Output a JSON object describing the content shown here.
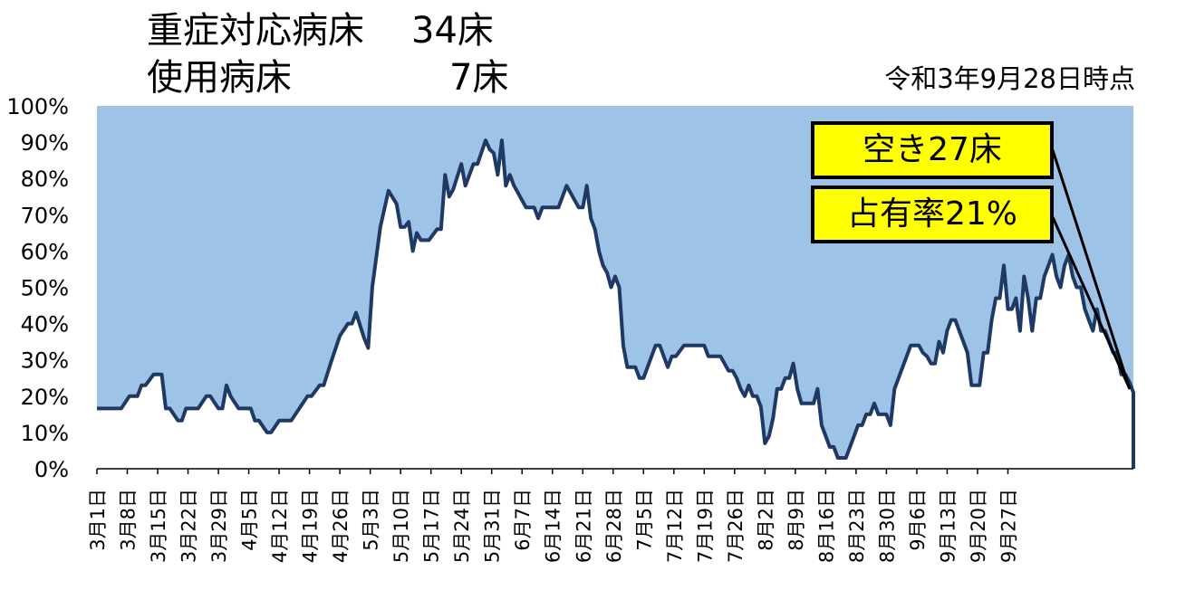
{
  "header": {
    "row1_label": "重症対応病床",
    "row1_value": "34床",
    "row2_label": "使用病床",
    "row2_value": "7床",
    "as_of": "令和3年9月28日時点"
  },
  "callouts": {
    "vacant": "空き27床",
    "occupancy": "占有率21%"
  },
  "colors": {
    "plot_background": "#9dc3e6",
    "line": "#1f3864",
    "callout_fill": "#ffff00"
  },
  "chart_data": {
    "type": "area",
    "title": "",
    "xlabel": "",
    "ylabel": "",
    "ylim": [
      0,
      100
    ],
    "y_ticks": [
      "0%",
      "10%",
      "20%",
      "30%",
      "40%",
      "50%",
      "60%",
      "70%",
      "80%",
      "90%",
      "100%"
    ],
    "x_tick_labels": [
      "3月1日",
      "3月8日",
      "3月15日",
      "3月22日",
      "3月29日",
      "4月5日",
      "4月12日",
      "4月19日",
      "4月26日",
      "5月3日",
      "5月10日",
      "5月17日",
      "5月24日",
      "5月31日",
      "6月7日",
      "6月14日",
      "6月21日",
      "6月28日",
      "7月5日",
      "7月12日",
      "7月19日",
      "7月26日",
      "8月2日",
      "8月9日",
      "8月16日",
      "8月23日",
      "8月30日",
      "9月6日",
      "9月13日",
      "9月20日",
      "9月27日"
    ],
    "series": [
      {
        "name": "占有率",
        "points": [
          [
            0,
            16.6
          ],
          [
            6,
            16.6
          ],
          [
            8,
            20
          ],
          [
            10,
            20
          ],
          [
            11,
            23
          ],
          [
            12,
            23
          ],
          [
            14,
            26
          ],
          [
            16,
            26
          ],
          [
            17,
            16.6
          ],
          [
            18,
            16.6
          ],
          [
            20,
            13.3
          ],
          [
            21,
            13.3
          ],
          [
            22,
            16.6
          ],
          [
            25,
            16.6
          ],
          [
            27,
            20
          ],
          [
            28,
            20
          ],
          [
            30,
            16.6
          ],
          [
            31,
            16.6
          ],
          [
            32,
            23
          ],
          [
            33,
            20
          ],
          [
            35,
            16.6
          ],
          [
            38,
            16.6
          ],
          [
            39,
            13.3
          ],
          [
            40,
            13.3
          ],
          [
            42,
            10
          ],
          [
            43,
            10
          ],
          [
            45,
            13.3
          ],
          [
            48,
            13.3
          ],
          [
            52,
            20
          ],
          [
            53,
            20
          ],
          [
            55,
            23
          ],
          [
            56,
            23
          ],
          [
            58,
            30
          ],
          [
            60,
            36.6
          ],
          [
            62,
            40
          ],
          [
            63,
            40
          ],
          [
            64,
            43
          ],
          [
            66,
            36
          ],
          [
            67,
            33.3
          ],
          [
            68,
            50
          ],
          [
            70,
            66.6
          ],
          [
            72,
            76.6
          ],
          [
            74,
            73
          ],
          [
            75,
            66.6
          ],
          [
            76,
            66.6
          ],
          [
            77,
            68
          ],
          [
            78,
            60
          ],
          [
            79,
            65
          ],
          [
            80,
            63
          ],
          [
            81,
            63
          ],
          [
            82,
            63
          ],
          [
            84,
            66
          ],
          [
            85,
            66
          ],
          [
            86,
            81
          ],
          [
            87,
            75
          ],
          [
            88,
            77
          ],
          [
            90,
            84
          ],
          [
            91,
            78
          ],
          [
            93,
            84
          ],
          [
            94,
            84
          ],
          [
            96,
            90.5
          ],
          [
            97,
            88
          ],
          [
            98,
            87
          ],
          [
            99,
            81
          ],
          [
            100,
            90.5
          ],
          [
            101,
            78
          ],
          [
            102,
            81
          ],
          [
            103,
            78
          ],
          [
            104,
            76
          ],
          [
            105,
            74
          ],
          [
            106,
            72
          ],
          [
            107,
            72
          ],
          [
            108,
            72
          ],
          [
            109,
            69
          ],
          [
            110,
            72
          ],
          [
            113,
            72
          ],
          [
            114,
            72
          ],
          [
            116,
            78
          ],
          [
            118,
            74
          ],
          [
            119,
            72
          ],
          [
            120,
            72
          ],
          [
            121,
            78
          ],
          [
            122,
            69
          ],
          [
            123,
            66
          ],
          [
            124,
            60
          ],
          [
            125,
            56
          ],
          [
            126,
            54
          ],
          [
            127,
            50
          ],
          [
            128,
            53
          ],
          [
            129,
            50
          ],
          [
            130,
            34
          ],
          [
            131,
            28
          ],
          [
            132,
            28
          ],
          [
            133,
            28
          ],
          [
            134,
            25
          ],
          [
            135,
            25
          ],
          [
            137,
            31
          ],
          [
            138,
            34
          ],
          [
            139,
            34
          ],
          [
            140,
            31
          ],
          [
            141,
            28
          ],
          [
            142,
            31
          ],
          [
            143,
            31
          ],
          [
            145,
            34
          ],
          [
            150,
            34
          ],
          [
            151,
            31
          ],
          [
            152,
            31
          ],
          [
            153,
            31
          ],
          [
            154,
            31
          ],
          [
            155,
            29
          ],
          [
            156,
            27
          ],
          [
            157,
            27
          ],
          [
            158,
            25
          ],
          [
            159,
            22
          ],
          [
            160,
            20
          ],
          [
            161,
            23
          ],
          [
            162,
            20
          ],
          [
            163,
            20
          ],
          [
            164,
            17
          ],
          [
            165,
            7
          ],
          [
            166,
            9
          ],
          [
            167,
            14
          ],
          [
            168,
            22
          ],
          [
            169,
            22
          ],
          [
            170,
            25
          ],
          [
            171,
            25
          ],
          [
            172,
            29
          ],
          [
            173,
            22
          ],
          [
            174,
            18
          ],
          [
            175,
            18
          ],
          [
            176,
            18
          ],
          [
            177,
            18
          ],
          [
            178,
            22
          ],
          [
            179,
            12
          ],
          [
            180,
            9
          ],
          [
            181,
            6
          ],
          [
            182,
            6
          ],
          [
            183,
            3
          ],
          [
            184,
            3
          ],
          [
            185,
            3
          ],
          [
            186,
            6
          ],
          [
            187,
            9
          ],
          [
            188,
            12
          ],
          [
            189,
            12
          ],
          [
            190,
            15
          ],
          [
            191,
            15
          ],
          [
            192,
            18
          ],
          [
            193,
            15
          ],
          [
            194,
            15
          ],
          [
            195,
            15
          ],
          [
            196,
            12
          ],
          [
            197,
            22
          ],
          [
            198,
            25
          ],
          [
            199,
            28
          ],
          [
            200,
            31
          ],
          [
            201,
            34
          ],
          [
            202,
            34
          ],
          [
            203,
            34
          ],
          [
            204,
            32
          ],
          [
            205,
            31
          ],
          [
            206,
            29
          ],
          [
            207,
            29
          ],
          [
            208,
            35
          ],
          [
            209,
            32
          ],
          [
            210,
            38
          ],
          [
            211,
            41
          ],
          [
            212,
            41
          ],
          [
            213,
            38
          ],
          [
            214,
            35
          ],
          [
            215,
            32
          ],
          [
            216,
            23
          ],
          [
            217,
            23
          ],
          [
            218,
            23
          ],
          [
            219,
            32
          ],
          [
            220,
            32
          ],
          [
            221,
            41
          ],
          [
            222,
            47
          ],
          [
            223,
            47
          ],
          [
            224,
            56
          ],
          [
            225,
            44
          ],
          [
            226,
            44
          ],
          [
            227,
            47
          ],
          [
            228,
            38
          ],
          [
            229,
            53
          ],
          [
            230,
            47
          ],
          [
            231,
            38
          ],
          [
            232,
            47
          ],
          [
            233,
            47
          ],
          [
            234,
            53
          ],
          [
            235,
            56
          ],
          [
            236,
            59
          ],
          [
            237,
            53
          ],
          [
            238,
            50
          ],
          [
            239,
            56
          ],
          [
            240,
            59
          ],
          [
            241,
            53
          ],
          [
            242,
            50
          ],
          [
            243,
            50
          ],
          [
            244,
            44
          ],
          [
            245,
            41
          ],
          [
            246,
            38
          ],
          [
            247,
            44
          ],
          [
            248,
            38
          ],
          [
            249,
            38
          ],
          [
            250,
            35
          ],
          [
            251,
            32
          ],
          [
            252,
            32
          ],
          [
            253,
            26
          ],
          [
            254,
            26
          ],
          [
            255,
            24
          ],
          [
            256,
            21
          ],
          [
            256,
            0
          ]
        ]
      }
    ]
  }
}
